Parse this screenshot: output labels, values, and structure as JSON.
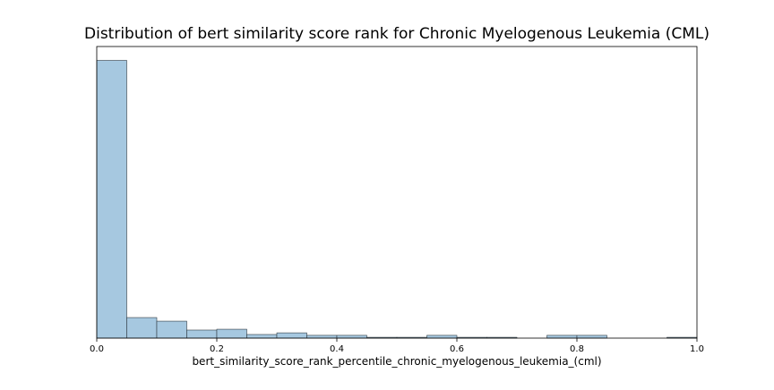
{
  "chart_data": {
    "type": "bar",
    "title": "Distribution of bert similarity score rank for Chronic Myelogenous Leukemia (CML)",
    "xlabel": "bert_similarity_score_rank_percentile_chronic_myelogenous_leukemia_(cml)",
    "ylabel": "",
    "xlim": [
      0,
      1
    ],
    "ylim": [
      0,
      1.05
    ],
    "y_ticks_shown": false,
    "grid": false,
    "bar_color": "#a6c8e0",
    "bar_edge_color": "#2f3a42",
    "x_ticks": [
      {
        "value": 0.0,
        "label": "0.0"
      },
      {
        "value": 0.2,
        "label": "0.2"
      },
      {
        "value": 0.4,
        "label": "0.4"
      },
      {
        "value": 0.6,
        "label": "0.6"
      },
      {
        "value": 0.8,
        "label": "0.8"
      },
      {
        "value": 1.0,
        "label": "1.0"
      }
    ],
    "bins": [
      {
        "start": 0.0,
        "end": 0.05,
        "value": 1.0
      },
      {
        "start": 0.05,
        "end": 0.1,
        "value": 0.074
      },
      {
        "start": 0.1,
        "end": 0.15,
        "value": 0.061
      },
      {
        "start": 0.15,
        "end": 0.2,
        "value": 0.029
      },
      {
        "start": 0.2,
        "end": 0.25,
        "value": 0.032
      },
      {
        "start": 0.25,
        "end": 0.3,
        "value": 0.013
      },
      {
        "start": 0.3,
        "end": 0.35,
        "value": 0.019
      },
      {
        "start": 0.35,
        "end": 0.4,
        "value": 0.01
      },
      {
        "start": 0.4,
        "end": 0.45,
        "value": 0.01
      },
      {
        "start": 0.45,
        "end": 0.5,
        "value": 0.003
      },
      {
        "start": 0.5,
        "end": 0.55,
        "value": 0.003
      },
      {
        "start": 0.55,
        "end": 0.6,
        "value": 0.01
      },
      {
        "start": 0.6,
        "end": 0.65,
        "value": 0.003
      },
      {
        "start": 0.65,
        "end": 0.7,
        "value": 0.003
      },
      {
        "start": 0.7,
        "end": 0.75,
        "value": 0.0
      },
      {
        "start": 0.75,
        "end": 0.8,
        "value": 0.01
      },
      {
        "start": 0.8,
        "end": 0.85,
        "value": 0.01
      },
      {
        "start": 0.85,
        "end": 0.9,
        "value": 0.0
      },
      {
        "start": 0.9,
        "end": 0.95,
        "value": 0.0
      },
      {
        "start": 0.95,
        "end": 1.0,
        "value": 0.003
      }
    ]
  }
}
